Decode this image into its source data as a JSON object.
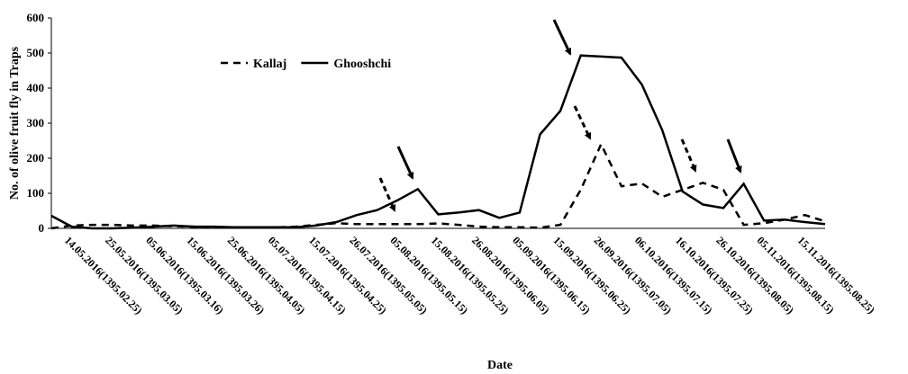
{
  "chart_data": {
    "type": "line",
    "x_label": "Date",
    "y_label": "No. of olive fruit fly in Traps",
    "categories": [
      "14.05.2016(1395.02.25)",
      null,
      "25.05.2016(1395.03.05)",
      null,
      "05.06.2016(1395.03.16)",
      null,
      "15.06.2016(1395.03.26)",
      null,
      "25.06.2016(1395.04.05)",
      null,
      "05.07.2016(1395.04.15)",
      null,
      "15.07.2016(1395.04.25)",
      null,
      "26.07.2016(1395.05.05)",
      null,
      "05.08.2016(1395.05.15)",
      null,
      "15.08.2016(1395.05.25)",
      null,
      "26.08.2016(1395.06.05)",
      null,
      "05.09.2016(1395.06.15)",
      null,
      "15.09.2016(1395.06.25)",
      null,
      "26.09.2016(1395.07.05)",
      null,
      "06.10.2016(1395.07.15)",
      null,
      "16.10.2016(1395.07.25)",
      null,
      "26.10.2016(1395.08.05)",
      null,
      "05.11.2016(1395.08.15)",
      null,
      "15.11.2016(1395.08.25)",
      null,
      null
    ],
    "series": [
      {
        "name": "Kallaj",
        "color": "#000000",
        "dash": true,
        "values": [
          0,
          8,
          10,
          10,
          8,
          8,
          6,
          5,
          3,
          3,
          3,
          3,
          5,
          10,
          15,
          12,
          12,
          12,
          12,
          14,
          10,
          5,
          3,
          3,
          2,
          10,
          110,
          240,
          120,
          128,
          90,
          110,
          130,
          110,
          10,
          15,
          25,
          38,
          20
        ]
      },
      {
        "name": "Ghooshchi",
        "color": "#000000",
        "dash": false,
        "values": [
          36,
          5,
          0,
          0,
          2,
          5,
          8,
          5,
          5,
          3,
          3,
          3,
          3,
          8,
          18,
          38,
          52,
          80,
          112,
          40,
          45,
          52,
          30,
          45,
          268,
          335,
          493,
          490,
          487,
          410,
          280,
          105,
          68,
          58,
          127,
          22,
          25,
          18,
          12
        ]
      }
    ],
    "ylim": [
      0,
      600
    ],
    "yticks": [
      0,
      100,
      200,
      300,
      400,
      500,
      600
    ],
    "grid": false,
    "legend": "upper left"
  }
}
